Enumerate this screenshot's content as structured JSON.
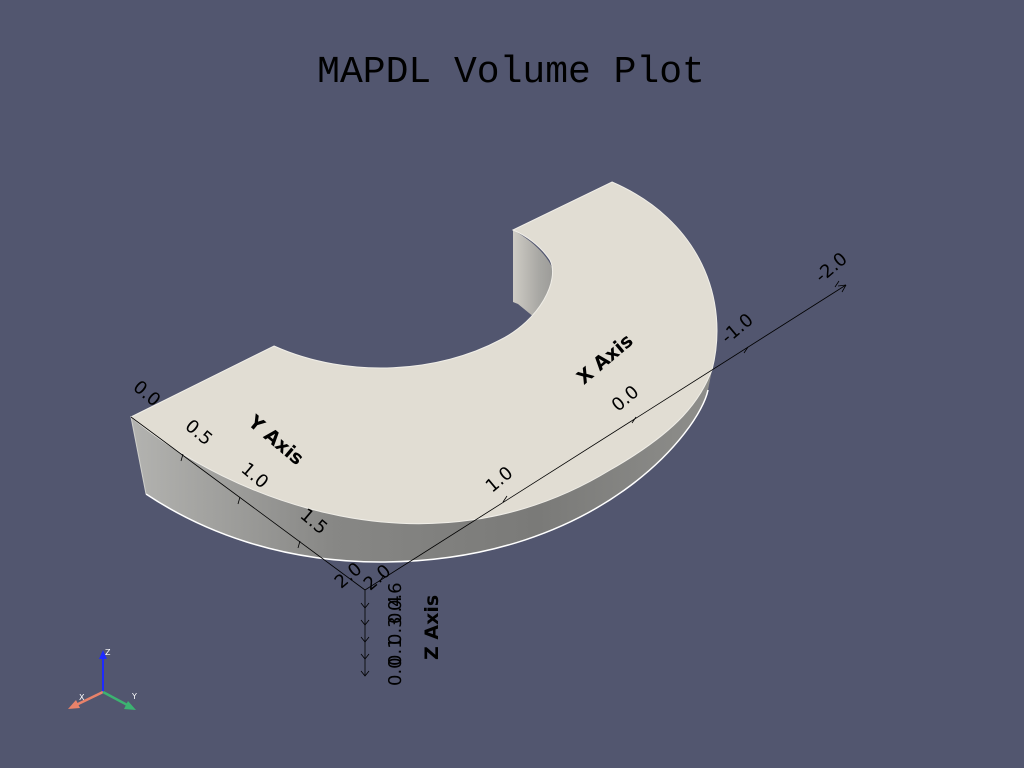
{
  "title": "MAPDL Volume Plot",
  "axes": {
    "x": {
      "label": "X Axis",
      "ticks": [
        "-2.0",
        "-1.0",
        "0.0",
        "1.0",
        "2.0"
      ]
    },
    "y": {
      "label": "Y Axis",
      "ticks": [
        "0.0",
        "0.5",
        "1.0",
        "1.5",
        "2.0"
      ]
    },
    "z": {
      "label": "Z Axis",
      "ticks": [
        "0.0",
        "0.1",
        "0.3",
        "0.4",
        "0.6"
      ]
    }
  },
  "orientation_triad": {
    "x_label": "X",
    "y_label": "Y",
    "z_label": "Z",
    "x_color": "#e8826a",
    "y_color": "#3cb371",
    "z_color": "#1e2bff"
  },
  "colors": {
    "background": "#52566f",
    "top_face": "#e1ddd3",
    "side_face": "#7d7d7b",
    "inner_face": "#c8c6c0"
  }
}
